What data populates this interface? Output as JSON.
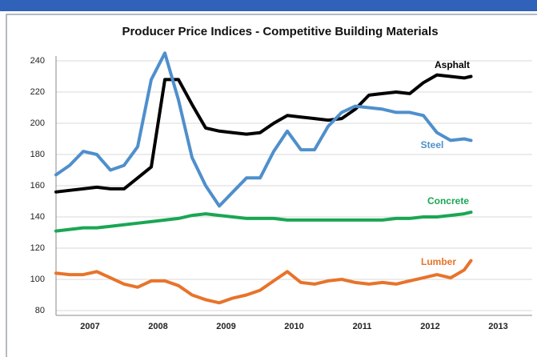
{
  "chart_data": {
    "type": "line",
    "title": "Producer Price Indices - Competitive Building Materials",
    "x": [
      2007.0,
      2007.2,
      2007.4,
      2007.6,
      2007.8,
      2008.0,
      2008.2,
      2008.4,
      2008.6,
      2008.8,
      2009.0,
      2009.2,
      2009.4,
      2009.6,
      2009.8,
      2010.0,
      2010.2,
      2010.4,
      2010.6,
      2010.8,
      2011.0,
      2011.2,
      2011.4,
      2011.6,
      2011.8,
      2012.0,
      2012.2,
      2012.4,
      2012.6,
      2012.8,
      2013.0,
      2013.1
    ],
    "series": [
      {
        "name": "Asphalt",
        "color": "#000000",
        "values": [
          156,
          157,
          158,
          159,
          158,
          158,
          165,
          172,
          228,
          228,
          212,
          197,
          195,
          194,
          193,
          194,
          200,
          205,
          204,
          203,
          202,
          203,
          209,
          218,
          219,
          220,
          219,
          226,
          231,
          230,
          229,
          230
        ]
      },
      {
        "name": "Steel",
        "color": "#4f8fcc",
        "values": [
          167,
          173,
          182,
          180,
          170,
          173,
          185,
          228,
          245,
          215,
          178,
          160,
          147,
          156,
          165,
          165,
          182,
          195,
          183,
          183,
          198,
          207,
          211,
          210,
          209,
          207,
          207,
          205,
          194,
          189,
          190,
          189
        ]
      },
      {
        "name": "Concrete",
        "color": "#1aa654",
        "values": [
          131,
          132,
          133,
          133,
          134,
          135,
          136,
          137,
          138,
          139,
          141,
          142,
          141,
          140,
          139,
          139,
          139,
          138,
          138,
          138,
          138,
          138,
          138,
          138,
          138,
          139,
          139,
          140,
          140,
          141,
          142,
          143
        ]
      },
      {
        "name": "Lumber",
        "color": "#e8732a",
        "values": [
          104,
          103,
          103,
          105,
          101,
          97,
          95,
          99,
          99,
          96,
          90,
          87,
          85,
          88,
          90,
          93,
          99,
          105,
          98,
          97,
          99,
          100,
          98,
          97,
          98,
          97,
          99,
          101,
          103,
          101,
          106,
          112
        ]
      }
    ],
    "xlim": [
      2007.0,
      2014.0
    ],
    "xticks": [
      {
        "value": 2007.5,
        "label": "2007"
      },
      {
        "value": 2008.5,
        "label": "2008"
      },
      {
        "value": 2009.5,
        "label": "2009"
      },
      {
        "value": 2010.5,
        "label": "2010"
      },
      {
        "value": 2011.5,
        "label": "2011"
      },
      {
        "value": 2012.5,
        "label": "2012"
      },
      {
        "value": 2013.5,
        "label": "2013"
      }
    ],
    "ylim": [
      80,
      240
    ],
    "yticks": [
      80,
      100,
      120,
      140,
      160,
      180,
      200,
      220,
      240
    ],
    "grid": true
  }
}
